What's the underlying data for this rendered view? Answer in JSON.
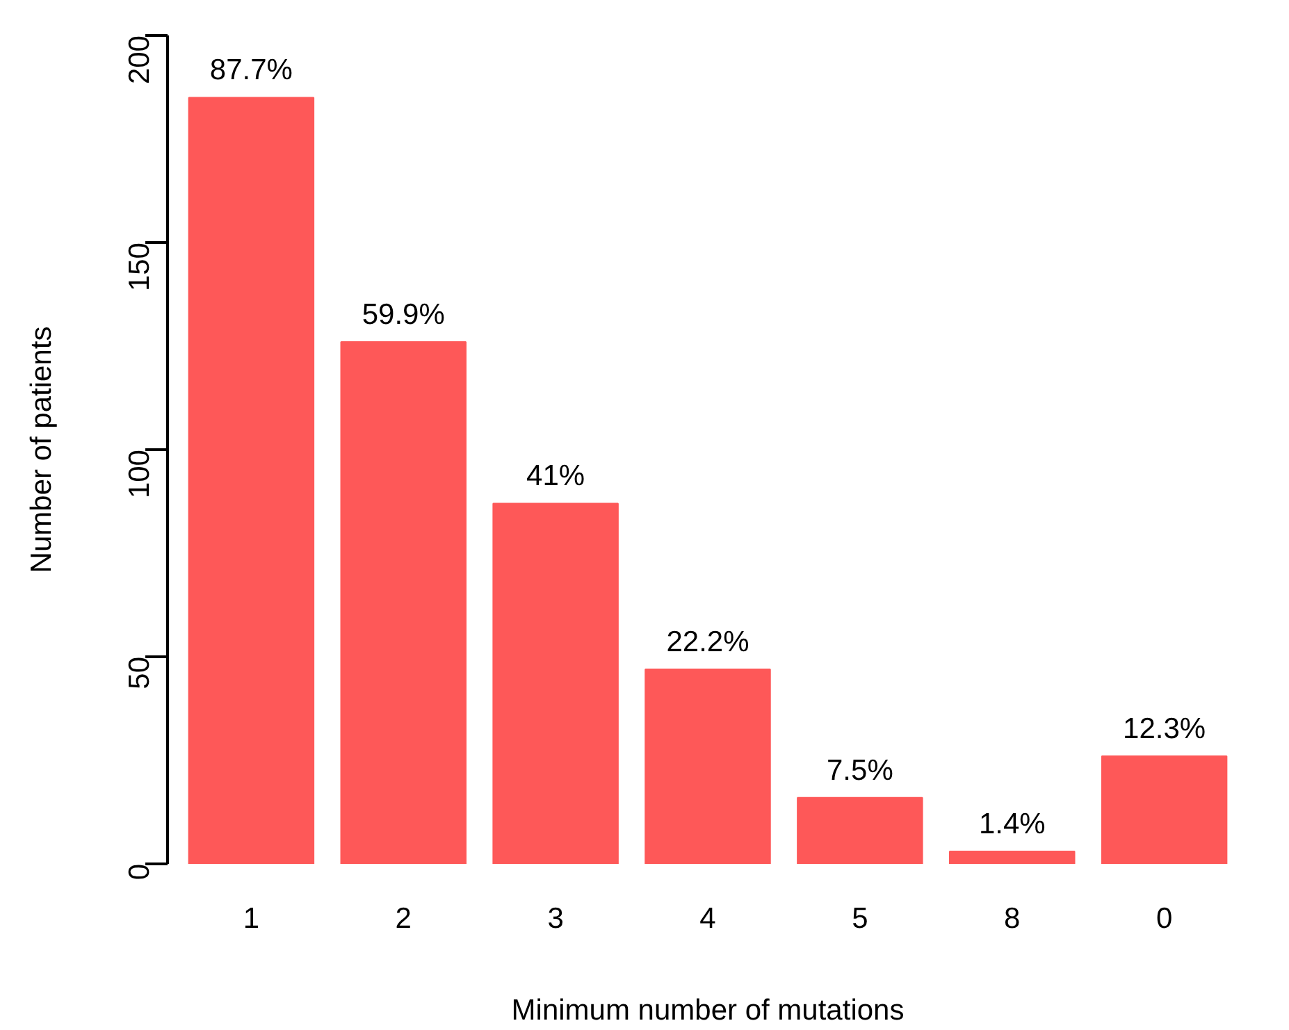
{
  "chart_data": {
    "type": "bar",
    "xlabel": "Minimum number of mutations",
    "ylabel": "Number of patients",
    "categories": [
      "1",
      "2",
      "3",
      "4",
      "5",
      "8",
      "0"
    ],
    "values": [
      185,
      126,
      87,
      47,
      16,
      3,
      26
    ],
    "annotations": [
      {
        "text": "87.7%",
        "x": "1",
        "y": 185
      },
      {
        "text": "59.9%",
        "x": "2",
        "y": 126
      },
      {
        "text": "41%",
        "x": "3",
        "y": 87
      },
      {
        "text": "22.2%",
        "x": "4",
        "y": 47
      },
      {
        "text": "7.5%",
        "x": "5",
        "y": 16
      },
      {
        "text": "1.4%",
        "x": "8",
        "y": 3
      },
      {
        "text": "12.3%",
        "x": "0",
        "y": 26
      }
    ],
    "color": "#fe5858",
    "ylim": [
      0,
      200
    ],
    "yticks": [
      0,
      50,
      100,
      150,
      200
    ],
    "grid": false
  }
}
